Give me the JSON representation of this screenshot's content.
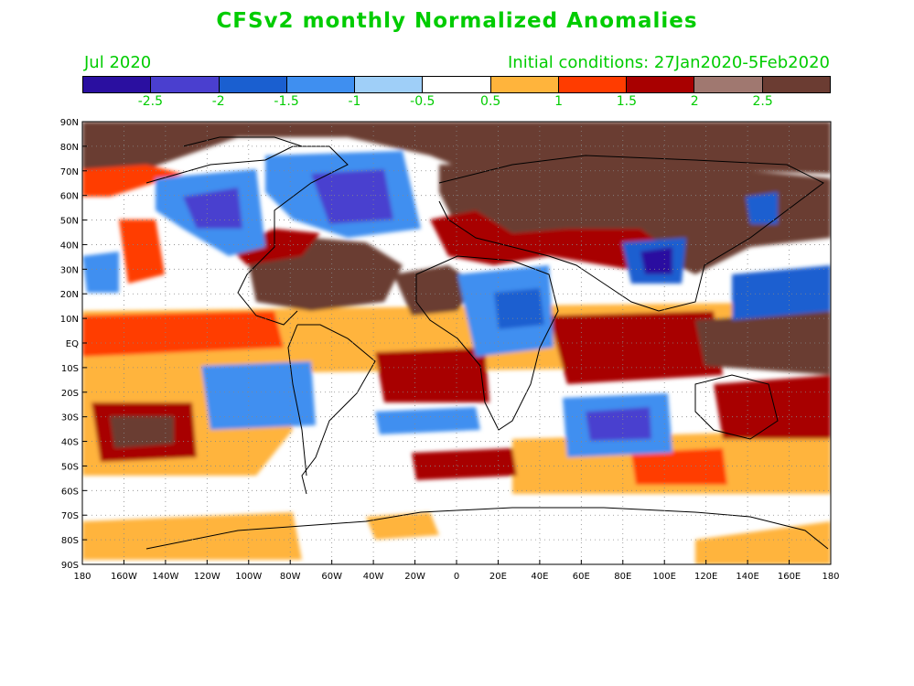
{
  "title": "CFSv2 monthly Normalized Anomalies",
  "month_label": "Jul 2020",
  "init_label": "Initial conditions: 27Jan2020-5Feb2020",
  "colorbar": {
    "colors": [
      "#2a0fa0",
      "#4a3fcf",
      "#1a5fd0",
      "#3f8ff0",
      "#9fcff8",
      "#ffffff",
      "#ffb43c",
      "#ff3c00",
      "#a80000",
      "#a07870",
      "#6b3c32"
    ],
    "labels": [
      "-2.5",
      "-2",
      "-1.5",
      "-1",
      "-0.5",
      "0.5",
      "1",
      "1.5",
      "2",
      "2.5"
    ]
  },
  "lat_labels": [
    "90N",
    "80N",
    "70N",
    "60N",
    "50N",
    "40N",
    "30N",
    "20N",
    "10N",
    "EQ",
    "10S",
    "20S",
    "30S",
    "40S",
    "50S",
    "60S",
    "70S",
    "80S",
    "90S"
  ],
  "lon_labels": [
    "180",
    "160W",
    "140W",
    "120W",
    "100W",
    "80W",
    "60W",
    "40W",
    "20W",
    "0",
    "20E",
    "40E",
    "60E",
    "80E",
    "100E",
    "120E",
    "140E",
    "160E",
    "180"
  ]
}
